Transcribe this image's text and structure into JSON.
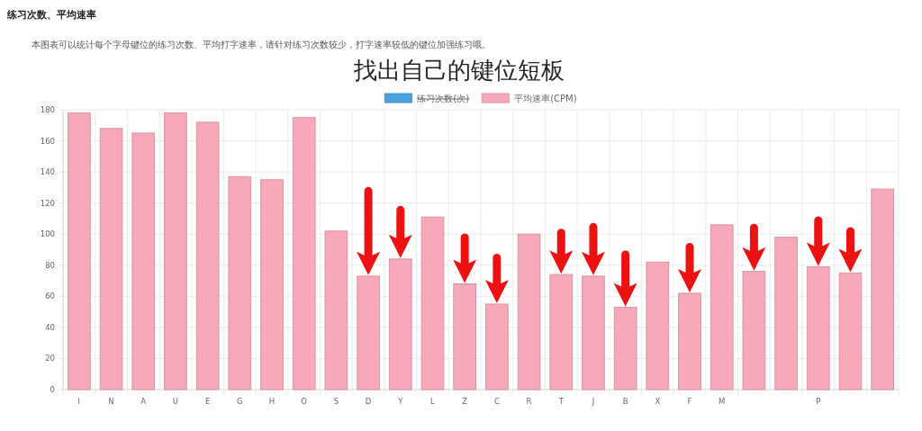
{
  "chart_data": {
    "type": "bar",
    "title": "找出自己的键位短板",
    "subtitle": "本图表可以统计每个字母键位的练习次数、平均打字速率，请针对练习次数较少，打字速率较低的键位加强练习哦。",
    "annotations": [
      "练习次数、平均速率"
    ],
    "categories": [
      "I",
      "N",
      "A",
      "U",
      "E",
      "G",
      "H",
      "O",
      "S",
      "D",
      "Y",
      "L",
      "Z",
      "C",
      "R",
      "T",
      "J",
      "B",
      "X",
      "F",
      "M",
      null,
      null,
      "P",
      null,
      null
    ],
    "series": [
      {
        "name": "练习次数(次)",
        "color": "#4aa3df",
        "values": [
          null,
          null,
          null,
          null,
          null,
          null,
          null,
          null,
          null,
          null,
          null,
          null,
          null,
          null,
          null,
          null,
          null,
          null,
          null,
          null,
          null,
          null,
          null,
          null,
          null,
          null
        ]
      },
      {
        "name": "平均速率(CPM)",
        "color": "#f7a8b9",
        "values": [
          178,
          168,
          165,
          178,
          172,
          137,
          135,
          175,
          102,
          73,
          84,
          111,
          68,
          55,
          100,
          74,
          73,
          53,
          82,
          62,
          106,
          76,
          98,
          79,
          75,
          129
        ]
      }
    ],
    "ylim": [
      0,
      180
    ],
    "yticks": [
      0,
      20,
      40,
      60,
      80,
      100,
      120,
      140,
      160,
      180
    ],
    "grid": true,
    "legend": "top"
  }
}
